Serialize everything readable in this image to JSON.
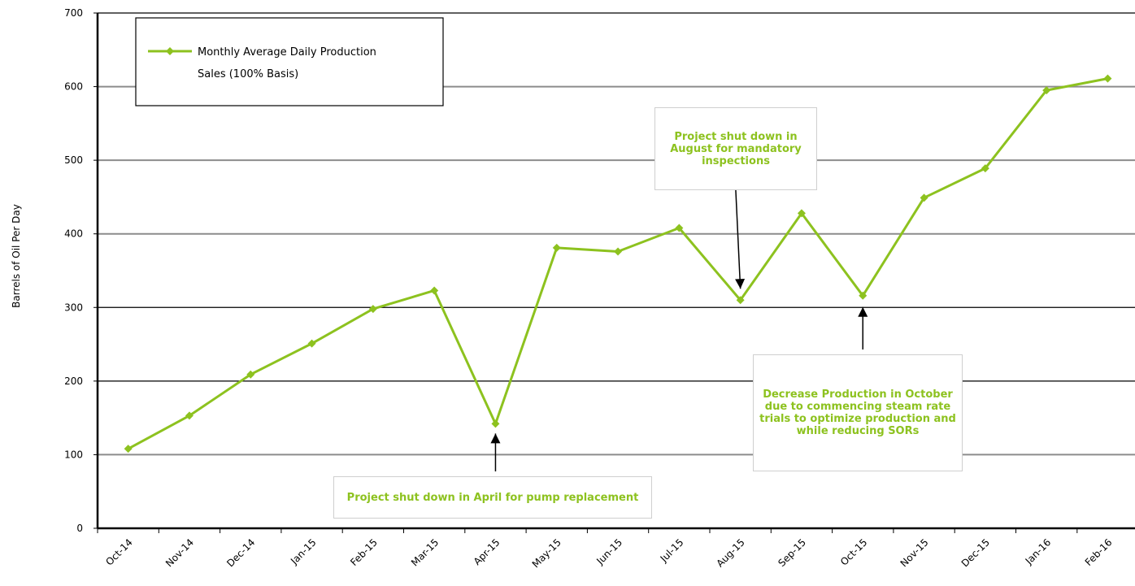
{
  "chart_data": {
    "type": "line",
    "title": "",
    "xlabel": "",
    "ylabel": "Barrels of Oil Per Day",
    "ylim": [
      0,
      700
    ],
    "yticks": [
      0,
      100,
      200,
      300,
      400,
      500,
      600,
      700
    ],
    "grid": true,
    "categories": [
      "Oct-14",
      "Nov-14",
      "Dec-14",
      "Jan-15",
      "Feb-15",
      "Mar-15",
      "Apr-15",
      "May-15",
      "Jun-15",
      "Jul-15",
      "Aug-15",
      "Sep-15",
      "Oct-15",
      "Nov-15",
      "Dec-15",
      "Jan-16",
      "Feb-16"
    ],
    "series": [
      {
        "name": "Monthly Average Daily Production Sales (100% Basis)",
        "name_lines": [
          "Monthly Average Daily Production",
          "Sales (100% Basis)"
        ],
        "color": "#8dc21f",
        "values": [
          108,
          153,
          209,
          251,
          298,
          323,
          142,
          381,
          376,
          408,
          310,
          428,
          316,
          449,
          489,
          595,
          611
        ]
      }
    ],
    "legend": {
      "placement": "top-left"
    },
    "annotations": [
      {
        "text": "Project shut down in April for pump replacement",
        "target": "Apr-15"
      },
      {
        "text": "Project shut down in August for mandatory inspections",
        "target": "Aug-15"
      },
      {
        "text": "Decrease Production in October due to commencing steam rate trials to optimize production and while reducing SORs",
        "target": "Oct-15"
      }
    ]
  }
}
